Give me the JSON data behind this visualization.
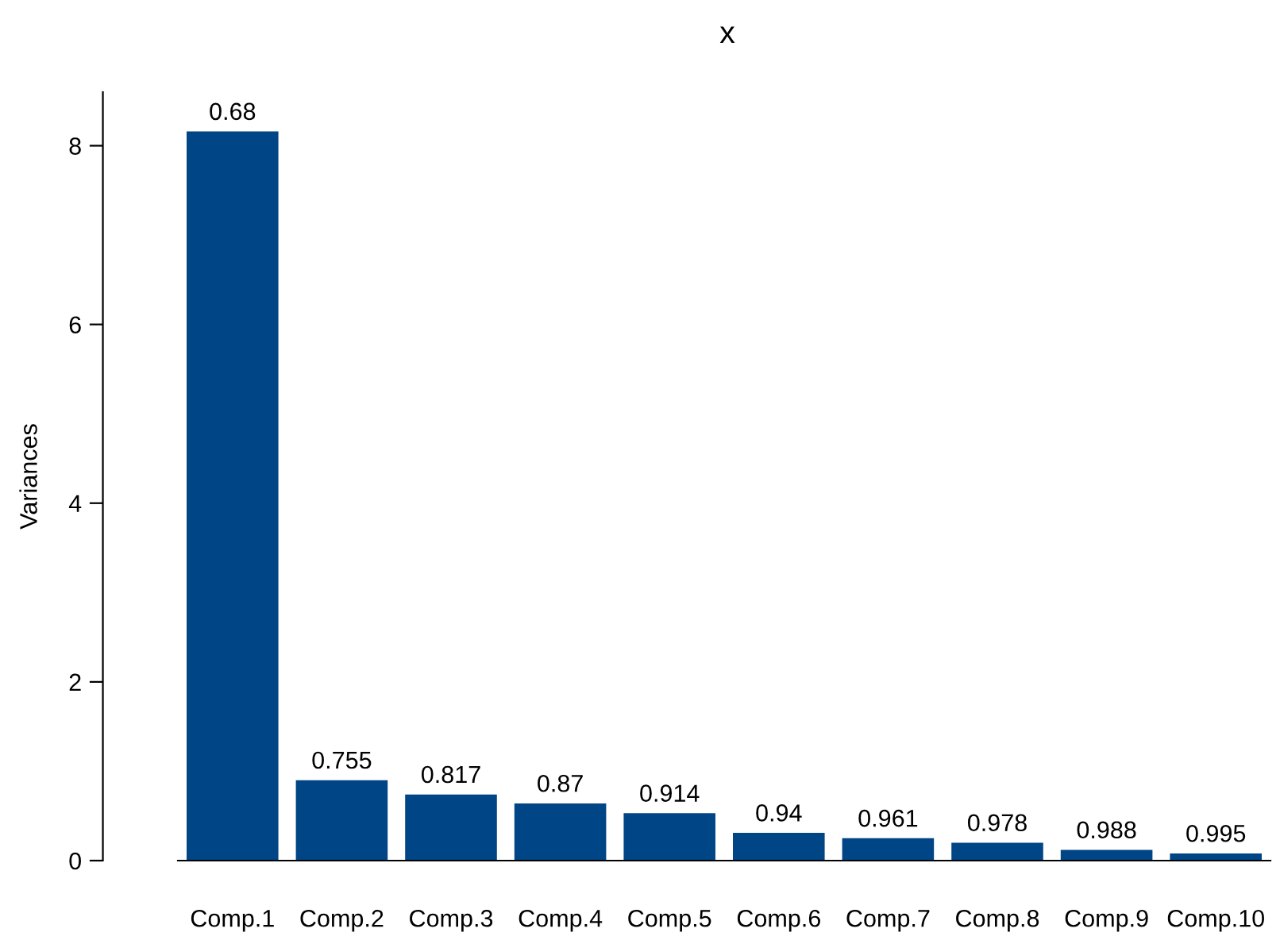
{
  "chart_data": {
    "type": "bar",
    "title": "x",
    "ylabel": "Variances",
    "categories": [
      "Comp.1",
      "Comp.2",
      "Comp.3",
      "Comp.4",
      "Comp.5",
      "Comp.6",
      "Comp.7",
      "Comp.8",
      "Comp.9",
      "Comp.10"
    ],
    "values": [
      8.16,
      0.9,
      0.74,
      0.64,
      0.53,
      0.31,
      0.25,
      0.2,
      0.12,
      0.08
    ],
    "annotations": [
      "0.68",
      "0.755",
      "0.817",
      "0.87",
      "0.914",
      "0.94",
      "0.961",
      "0.978",
      "0.988",
      "0.995"
    ],
    "color": "#004586",
    "ylim": [
      0,
      8.6
    ],
    "yticks": [
      0,
      2,
      4,
      6,
      8
    ],
    "grid": false
  }
}
